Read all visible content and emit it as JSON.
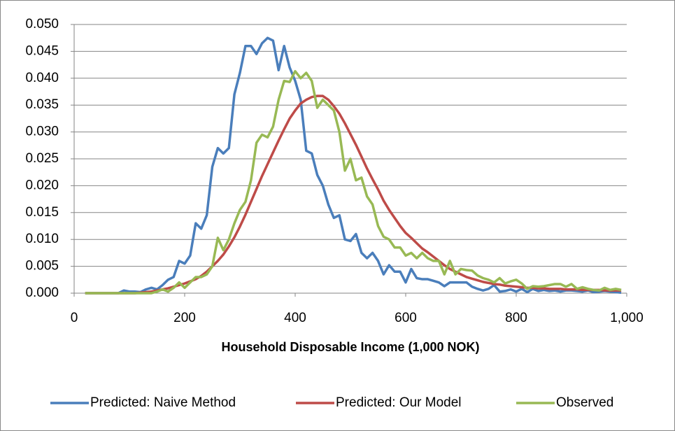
{
  "chart_data": {
    "type": "line",
    "x_label": "Household Disposable Income (1,000 NOK)",
    "x": [
      20,
      30,
      40,
      50,
      60,
      70,
      80,
      90,
      100,
      110,
      120,
      130,
      140,
      150,
      160,
      170,
      180,
      190,
      200,
      210,
      220,
      230,
      240,
      250,
      260,
      270,
      280,
      290,
      300,
      310,
      320,
      330,
      340,
      350,
      360,
      370,
      380,
      390,
      400,
      410,
      420,
      430,
      440,
      450,
      460,
      470,
      480,
      490,
      500,
      510,
      520,
      530,
      540,
      550,
      560,
      570,
      580,
      590,
      600,
      610,
      620,
      630,
      640,
      650,
      660,
      670,
      680,
      690,
      700,
      710,
      720,
      730,
      740,
      750,
      760,
      770,
      780,
      790,
      800,
      810,
      820,
      830,
      840,
      850,
      860,
      870,
      880,
      890,
      900,
      910,
      920,
      930,
      940,
      950,
      960,
      970,
      980,
      990
    ],
    "series": [
      {
        "name": "Predicted: Naive Method",
        "color": "#4a7ebb",
        "values": [
          0,
          0,
          0,
          0,
          0,
          0,
          0,
          0.0005,
          0.0003,
          0.0003,
          0.0002,
          0.0007,
          0.001,
          0.0007,
          0.0015,
          0.0025,
          0.003,
          0.006,
          0.0055,
          0.007,
          0.013,
          0.012,
          0.0145,
          0.0235,
          0.027,
          0.026,
          0.027,
          0.037,
          0.041,
          0.046,
          0.046,
          0.0445,
          0.0465,
          0.0475,
          0.047,
          0.0415,
          0.046,
          0.042,
          0.0395,
          0.036,
          0.0265,
          0.026,
          0.022,
          0.02,
          0.0165,
          0.014,
          0.0145,
          0.01,
          0.0097,
          0.011,
          0.0075,
          0.0065,
          0.0075,
          0.006,
          0.0035,
          0.0052,
          0.004,
          0.004,
          0.002,
          0.0045,
          0.0028,
          0.0026,
          0.0026,
          0.0023,
          0.002,
          0.0013,
          0.002,
          0.002,
          0.002,
          0.002,
          0.0012,
          0.0008,
          0.0005,
          0.0008,
          0.0015,
          0.0003,
          0.0004,
          0.0007,
          0.0003,
          0.0008,
          0.0002,
          0.0008,
          0.0004,
          0.0006,
          0.0004,
          0.0005,
          0.0003,
          0.0005,
          0.0005,
          0.0004,
          0.0003,
          0.0005,
          0.0002,
          0.0003,
          0.0004,
          0.0003,
          0.0002,
          0.0001
        ]
      },
      {
        "name": "Predicted: Our Model",
        "color": "#be4b48",
        "values": [
          0,
          0,
          0,
          0,
          0,
          0,
          0,
          0,
          0,
          0,
          0.0001,
          0.0002,
          0.0003,
          0.0005,
          0.0007,
          0.0009,
          0.0012,
          0.0015,
          0.0018,
          0.0022,
          0.0026,
          0.0032,
          0.004,
          0.005,
          0.006,
          0.0072,
          0.0087,
          0.0104,
          0.0124,
          0.0146,
          0.017,
          0.0194,
          0.0218,
          0.024,
          0.0262,
          0.0284,
          0.0305,
          0.0325,
          0.034,
          0.0353,
          0.036,
          0.0365,
          0.0367,
          0.0367,
          0.036,
          0.0348,
          0.0334,
          0.0316,
          0.0296,
          0.0276,
          0.0254,
          0.0232,
          0.0212,
          0.0193,
          0.0172,
          0.0155,
          0.014,
          0.0125,
          0.0112,
          0.0103,
          0.0093,
          0.0083,
          0.0076,
          0.0068,
          0.006,
          0.0052,
          0.0045,
          0.004,
          0.0035,
          0.003,
          0.0027,
          0.0024,
          0.0021,
          0.0019,
          0.0017,
          0.0016,
          0.0014,
          0.0013,
          0.0012,
          0.0011,
          0.001,
          0.001,
          0.0009,
          0.0009,
          0.0008,
          0.0008,
          0.0008,
          0.0007,
          0.0007,
          0.0007,
          0.0006,
          0.0006,
          0.0006,
          0.0006,
          0.0005,
          0.0005,
          0.0005,
          0.0005
        ]
      },
      {
        "name": "Observed",
        "color": "#98b954",
        "values": [
          0,
          0,
          0,
          0,
          0,
          0,
          0,
          0,
          0,
          0,
          0,
          0,
          0,
          0.0003,
          0.0007,
          0.0003,
          0.001,
          0.002,
          0.001,
          0.002,
          0.003,
          0.003,
          0.0035,
          0.005,
          0.0103,
          0.008,
          0.01,
          0.013,
          0.0155,
          0.017,
          0.021,
          0.028,
          0.0295,
          0.029,
          0.031,
          0.036,
          0.0395,
          0.0393,
          0.0413,
          0.04,
          0.041,
          0.0395,
          0.0345,
          0.036,
          0.035,
          0.034,
          0.03,
          0.0228,
          0.025,
          0.021,
          0.0215,
          0.018,
          0.0165,
          0.0125,
          0.0105,
          0.01,
          0.0085,
          0.0085,
          0.007,
          0.0075,
          0.0065,
          0.0075,
          0.0065,
          0.006,
          0.006,
          0.0035,
          0.006,
          0.0035,
          0.0045,
          0.0043,
          0.0042,
          0.0033,
          0.0028,
          0.0025,
          0.002,
          0.0028,
          0.0018,
          0.0022,
          0.0025,
          0.0018,
          0.0008,
          0.0013,
          0.0012,
          0.0013,
          0.0015,
          0.0017,
          0.0017,
          0.0012,
          0.0017,
          0.0008,
          0.0011,
          0.0008,
          0.0006,
          0.0005,
          0.001,
          0.0006,
          0.0008,
          0.0006
        ]
      }
    ],
    "xlim": [
      0,
      1000
    ],
    "xticks": [
      0,
      200,
      400,
      600,
      800,
      {
        "value": 1000,
        "label": "1,000"
      }
    ],
    "ylim": [
      0,
      0.05
    ],
    "yticks": [
      {
        "value": 0,
        "label": "0.000"
      },
      {
        "value": 0.005,
        "label": "0.005"
      },
      {
        "value": 0.01,
        "label": "0.010"
      },
      {
        "value": 0.015,
        "label": "0.015"
      },
      {
        "value": 0.02,
        "label": "0.020"
      },
      {
        "value": 0.025,
        "label": "0.025"
      },
      {
        "value": 0.03,
        "label": "0.030"
      },
      {
        "value": 0.035,
        "label": "0.035"
      },
      {
        "value": 0.04,
        "label": "0.040"
      },
      {
        "value": 0.045,
        "label": "0.045"
      },
      {
        "value": 0.05,
        "label": "0.050"
      }
    ],
    "grid": true,
    "legend": "bottom"
  }
}
